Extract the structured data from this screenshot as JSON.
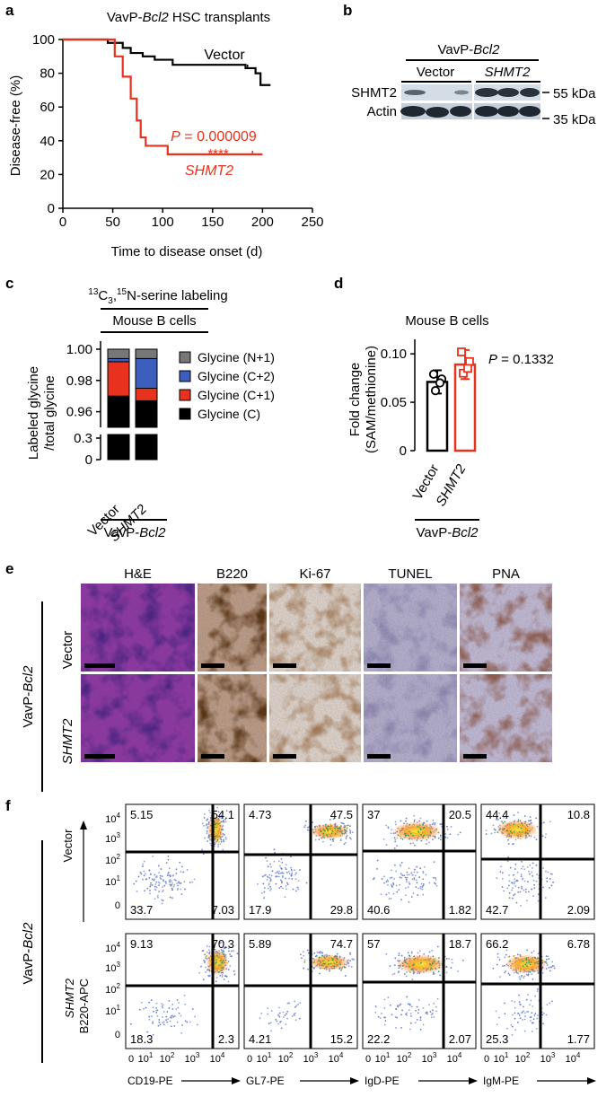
{
  "panels": {
    "a": "a",
    "b": "b",
    "c": "c",
    "d": "d",
    "e": "e",
    "f": "f"
  },
  "colors": {
    "vector": "#000000",
    "shmt2": "#e8321e",
    "c13_1": "#e8321e",
    "c13_2": "#3c5fbe",
    "n15": "#777777",
    "gly": "#000000"
  },
  "panel_a": {
    "title_pre": "VavP-",
    "title_ital": "Bcl2",
    "title_post": " HSC transplants",
    "ylabel": "Disease-free (%)",
    "xlabel": "Time to disease onset (d)",
    "vector_label": "Vector",
    "shmt2_label": "SHMT2",
    "p_pre": "P",
    "p_val": " = 0.000009",
    "stars": "****"
  },
  "panel_b": {
    "header_pre": "VavP-",
    "header_ital": "Bcl2",
    "lane_vector": "Vector",
    "lane_shmt2": "SHMT2",
    "row1": "SHMT2",
    "row2": "Actin",
    "mw1": "55 kDa",
    "mw2": "35 kDa"
  },
  "panel_c": {
    "title_iso": "13",
    "title_c3": "C",
    "title_sub3": "3",
    "title_comma": ",",
    "title_iso2": "15",
    "title_rest": "N-serine labeling",
    "subtitle": "Mouse B cells",
    "ylabel1": "Labeled glycine",
    "ylabel2": "/total glycine",
    "xcat1": "Vector",
    "xcat2": "SHMT2",
    "footer_pre": "VavP-",
    "footer_ital": "Bcl2",
    "legend": [
      "Glycine (N+1)",
      "Glycine (C+2)",
      "Glycine (C+1)",
      "Glycine (C)"
    ]
  },
  "panel_d": {
    "subtitle": "Mouse B cells",
    "ylabel1": "Fold change",
    "ylabel2": "(SAM/methionine)",
    "p_pre": "P",
    "p_val": " = 0.1332",
    "xcat1": "Vector",
    "xcat2": "SHMT2",
    "footer_pre": "VavP-",
    "footer_ital": "Bcl2"
  },
  "panel_e": {
    "cols": [
      "H&E",
      "B220",
      "Ki-67",
      "TUNEL",
      "PNA"
    ],
    "rows": [
      "Vector",
      "SHMT2"
    ],
    "side_pre": "VavP-",
    "side_ital": "Bcl2"
  },
  "panel_f": {
    "rows": [
      "Vector",
      "SHMT2"
    ],
    "side_pre": "VavP-",
    "side_ital": "Bcl2",
    "yaxis": "B220-APC",
    "xaxes": [
      "CD19-PE",
      "GL7-PE",
      "IgD-PE",
      "IgM-PE"
    ],
    "quads": [
      [
        [
          "5.15",
          "54.1",
          "33.7",
          "7.03"
        ],
        [
          "4.73",
          "47.5",
          "17.9",
          "29.8"
        ],
        [
          "37",
          "20.5",
          "40.6",
          "1.82"
        ],
        [
          "44.4",
          "10.8",
          "42.7",
          "2.09"
        ]
      ],
      [
        [
          "9.13",
          "70.3",
          "18.3",
          "2.3"
        ],
        [
          "5.89",
          "74.7",
          "4.21",
          "15.2"
        ],
        [
          "57",
          "18.7",
          "22.2",
          "2.07"
        ],
        [
          "66.2",
          "6.78",
          "25.3",
          "1.77"
        ]
      ]
    ]
  },
  "chart_data": [
    {
      "type": "line",
      "title": "VavP-Bcl2 HSC transplants",
      "xlabel": "Time to disease onset (d)",
      "ylabel": "Disease-free (%)",
      "xlim": [
        0,
        250
      ],
      "ylim": [
        0,
        100
      ],
      "xticks": [
        "0",
        "50",
        "100",
        "150",
        "200",
        "250"
      ],
      "yticks": [
        "0",
        "20",
        "40",
        "60",
        "80",
        "100"
      ],
      "series": [
        {
          "name": "Vector",
          "x": [
            0,
            45,
            60,
            68,
            80,
            92,
            110,
            150,
            183,
            193,
            198,
            208
          ],
          "y": [
            100,
            98,
            95,
            92,
            90,
            88,
            85,
            85,
            83,
            80,
            73,
            73
          ]
        },
        {
          "name": "SHMT2",
          "x": [
            0,
            52,
            60,
            68,
            74,
            78,
            83,
            105,
            150,
            200
          ],
          "y": [
            100,
            90,
            78,
            65,
            52,
            42,
            37,
            32,
            32,
            32
          ]
        }
      ]
    },
    {
      "type": "bar",
      "categories": [
        "Vector",
        "SHMT2"
      ],
      "ylabel": "Labeled glycine /total glycine",
      "upper_yticks": [
        "0.96",
        "0.98",
        "1.00"
      ],
      "lower_yticks": [
        "0",
        "0.3"
      ],
      "series": [
        {
          "name": "Glycine (C)",
          "values": [
            0.97,
            0.967
          ]
        },
        {
          "name": "Glycine (C+1)",
          "values": [
            0.022,
            0.008
          ]
        },
        {
          "name": "Glycine (C+2)",
          "values": [
            0.002,
            0.019
          ]
        },
        {
          "name": "Glycine (N+1)",
          "values": [
            0.006,
            0.006
          ]
        }
      ]
    },
    {
      "type": "bar",
      "categories": [
        "Vector",
        "SHMT2"
      ],
      "ylabel": "Fold change (SAM/methionine)",
      "ylim": [
        0,
        0.115
      ],
      "yticks": [
        "0",
        "0.05",
        "0.10"
      ],
      "values": [
        0.071,
        0.089
      ],
      "errors": [
        0.012,
        0.015
      ],
      "points": [
        [
          0.079,
          0.074,
          0.062,
          0.07
        ],
        [
          0.102,
          0.092,
          0.08,
          0.085
        ]
      ]
    }
  ]
}
